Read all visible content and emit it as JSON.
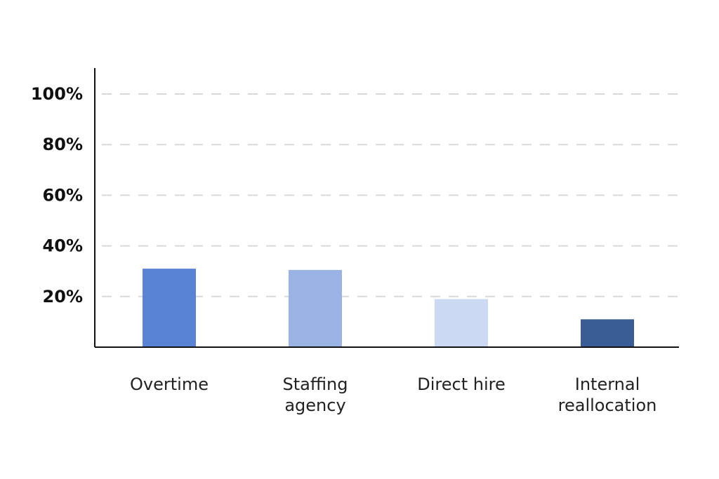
{
  "chart_data": {
    "type": "bar",
    "title": "",
    "xlabel": "",
    "ylabel": "",
    "categories": [
      "Overtime",
      "Staffing agency",
      "Direct hire",
      "Internal reallocation"
    ],
    "category_label_lines": [
      [
        "Overtime"
      ],
      [
        "Staffing",
        "agency"
      ],
      [
        "Direct hire"
      ],
      [
        "Internal",
        "reallocation"
      ]
    ],
    "values": [
      31,
      30.5,
      19,
      11
    ],
    "bar_colors": [
      "#5983d5",
      "#9bb3e4",
      "#ccd9f2",
      "#3a5d96"
    ],
    "ylim": [
      0,
      100
    ],
    "yticks": [
      20,
      40,
      60,
      80,
      100
    ],
    "ytick_labels": [
      "20%",
      "40%",
      "60%",
      "80%",
      "100%"
    ],
    "grid": true,
    "legend": "none"
  }
}
